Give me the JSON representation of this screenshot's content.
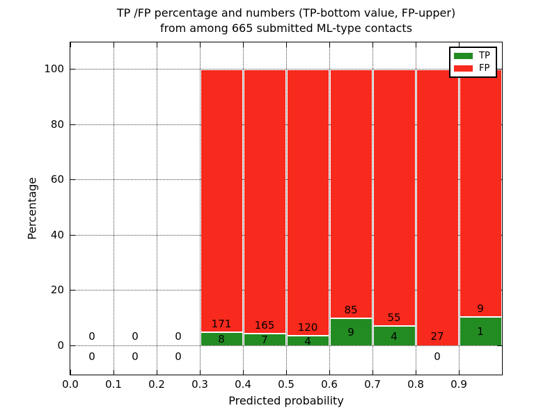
{
  "figure": {
    "title_line1": "TP /FP percentage and numbers (TP-bottom value, FP-upper)",
    "title_line2": "from among 665 submitted ML-type contacts"
  },
  "chart_data": {
    "type": "bar",
    "stacked": true,
    "title": "TP /FP percentage and numbers (TP-bottom value, FP-upper) from among 665 submitted ML-type contacts",
    "xlabel": "Predicted probability",
    "ylabel": "Percentage",
    "xlim": [
      0.0,
      1.0
    ],
    "ylim": [
      -11,
      110
    ],
    "grid": "dotted",
    "legend_position": "upper right",
    "x_ticks": [
      "0.0",
      "0.1",
      "0.2",
      "0.3",
      "0.4",
      "0.5",
      "0.6",
      "0.7",
      "0.8",
      "0.9"
    ],
    "y_ticks": [
      0,
      20,
      40,
      60,
      80,
      100
    ],
    "series": [
      {
        "name": "TP",
        "color": "#228b22"
      },
      {
        "name": "FP",
        "color": "#f8291d"
      }
    ],
    "bins": [
      {
        "x0": 0.0,
        "x1": 0.1,
        "tp": 0,
        "fp": 0,
        "tp_pct": 0,
        "fp_pct": 0
      },
      {
        "x0": 0.1,
        "x1": 0.2,
        "tp": 0,
        "fp": 0,
        "tp_pct": 0,
        "fp_pct": 0
      },
      {
        "x0": 0.2,
        "x1": 0.3,
        "tp": 0,
        "fp": 0,
        "tp_pct": 0,
        "fp_pct": 0
      },
      {
        "x0": 0.3,
        "x1": 0.4,
        "tp": 8,
        "fp": 171,
        "tp_pct": 4.47,
        "fp_pct": 95.53
      },
      {
        "x0": 0.4,
        "x1": 0.5,
        "tp": 7,
        "fp": 165,
        "tp_pct": 4.07,
        "fp_pct": 95.93
      },
      {
        "x0": 0.5,
        "x1": 0.6,
        "tp": 4,
        "fp": 120,
        "tp_pct": 3.23,
        "fp_pct": 96.77
      },
      {
        "x0": 0.6,
        "x1": 0.7,
        "tp": 9,
        "fp": 85,
        "tp_pct": 9.57,
        "fp_pct": 90.43
      },
      {
        "x0": 0.7,
        "x1": 0.8,
        "tp": 4,
        "fp": 55,
        "tp_pct": 6.78,
        "fp_pct": 93.22
      },
      {
        "x0": 0.8,
        "x1": 0.9,
        "tp": 0,
        "fp": 27,
        "tp_pct": 0,
        "fp_pct": 100
      },
      {
        "x0": 0.9,
        "x1": 1.0,
        "tp": 1,
        "fp": 9,
        "tp_pct": 10.0,
        "fp_pct": 90.0
      }
    ]
  }
}
